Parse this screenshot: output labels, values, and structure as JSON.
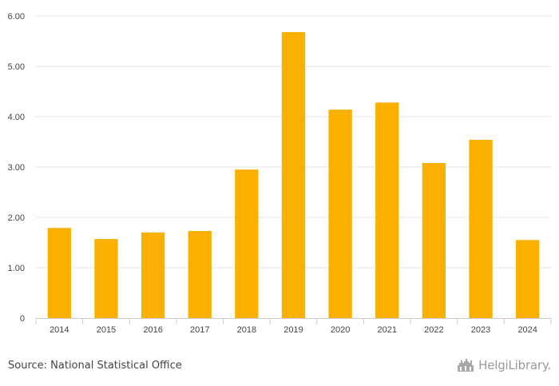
{
  "chart_data": {
    "type": "bar",
    "categories": [
      "2014",
      "2015",
      "2016",
      "2017",
      "2018",
      "2019",
      "2020",
      "2021",
      "2022",
      "2023",
      "2024"
    ],
    "values": [
      1.79,
      1.57,
      1.7,
      1.73,
      2.95,
      5.68,
      4.14,
      4.28,
      3.08,
      3.54,
      1.55
    ],
    "ylim": [
      0,
      6
    ],
    "yticks": [
      0,
      1,
      2,
      3,
      4,
      5,
      6
    ],
    "ytick_labels": [
      "0",
      "1.00",
      "2.00",
      "3.00",
      "4.00",
      "5.00",
      "6.00"
    ],
    "title": "",
    "xlabel": "",
    "ylabel": "",
    "grid": true,
    "bar_color": "#F9B000"
  },
  "footer": {
    "source": "Source: National Statistical Office",
    "logo_text": "HelgiLibrary."
  }
}
